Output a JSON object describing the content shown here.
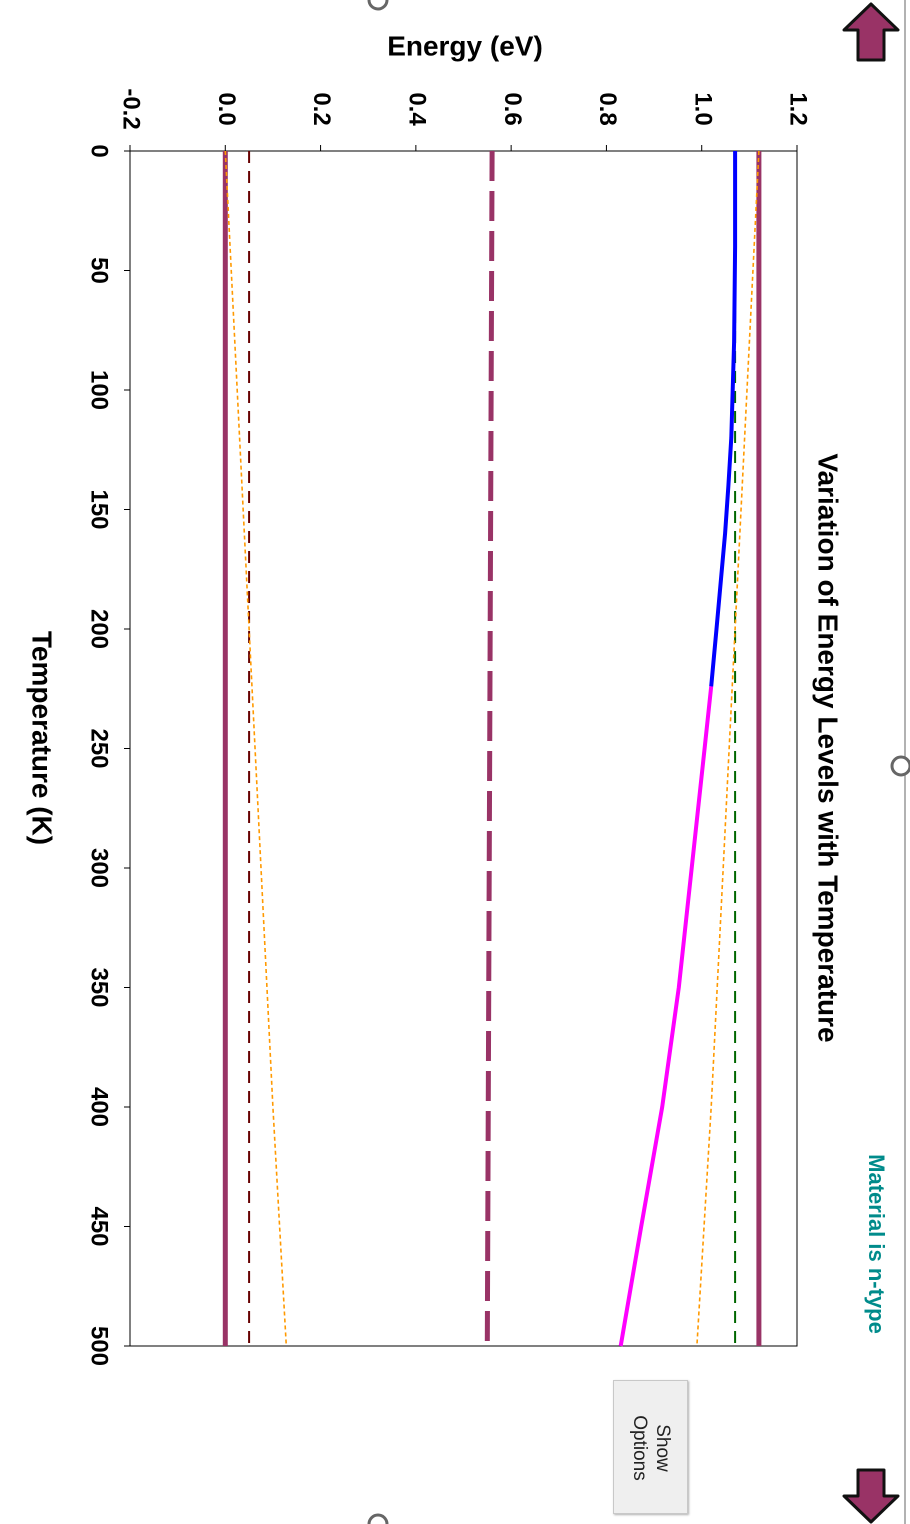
{
  "chart_data": {
    "type": "line",
    "title": "Variation of Energy Levels with Temperature",
    "xlabel": "Temperature (K)",
    "ylabel": "Energy (eV)",
    "xlim": [
      0,
      500
    ],
    "ylim": [
      -0.2,
      1.2
    ],
    "xticks": [
      0,
      50,
      100,
      150,
      200,
      250,
      300,
      350,
      400,
      450,
      500
    ],
    "yticks": [
      -0.2,
      0.0,
      0.2,
      0.4,
      0.6,
      0.8,
      1.0,
      1.2
    ],
    "xtick_labels": [
      "0",
      "50",
      "100",
      "150",
      "200",
      "250",
      "300",
      "350",
      "400",
      "450",
      "500"
    ],
    "ytick_labels": [
      "-0.2",
      "0.0",
      "0.2",
      "0.4",
      "0.6",
      "0.8",
      "1.0",
      "1.2"
    ],
    "grid": false,
    "legend": "none",
    "series": [
      {
        "style": "solid-thick",
        "color": "#993366",
        "points": [
          [
            0,
            1.12
          ],
          [
            500,
            1.12
          ]
        ]
      },
      {
        "style": "solid-thick",
        "color": "#993366",
        "points": [
          [
            0,
            0.0
          ],
          [
            500,
            0.0
          ]
        ]
      },
      {
        "style": "long-dash-thick",
        "color": "#993366",
        "points": [
          [
            0,
            0.56
          ],
          [
            500,
            0.55
          ]
        ]
      },
      {
        "style": "dashed",
        "color": "#660000",
        "points": [
          [
            0,
            0.05
          ],
          [
            500,
            0.05
          ]
        ]
      },
      {
        "style": "dashed",
        "color": "#006600",
        "points": [
          [
            0,
            1.07
          ],
          [
            500,
            1.07
          ]
        ]
      },
      {
        "style": "dotted",
        "color": "#ff9900",
        "points": [
          [
            0,
            0.0
          ],
          [
            100,
            0.025
          ],
          [
            200,
            0.05
          ],
          [
            300,
            0.075
          ],
          [
            400,
            0.1
          ],
          [
            500,
            0.128
          ]
        ]
      },
      {
        "style": "dotted",
        "color": "#ff9900",
        "points": [
          [
            0,
            1.12
          ],
          [
            100,
            1.095
          ],
          [
            200,
            1.07
          ],
          [
            300,
            1.045
          ],
          [
            400,
            1.02
          ],
          [
            500,
            0.99
          ]
        ]
      },
      {
        "style": "solid",
        "color": "#0000ff",
        "points": [
          [
            0,
            1.07
          ],
          [
            40,
            1.07
          ],
          [
            80,
            1.068
          ],
          [
            100,
            1.065
          ],
          [
            120,
            1.062
          ],
          [
            140,
            1.056
          ],
          [
            160,
            1.049
          ],
          [
            180,
            1.04
          ],
          [
            200,
            1.031
          ],
          [
            224,
            1.02
          ]
        ]
      },
      {
        "style": "solid",
        "color": "#ff00ff",
        "points": [
          [
            224,
            1.02
          ],
          [
            250,
            1.006
          ],
          [
            300,
            0.979
          ],
          [
            350,
            0.952
          ],
          [
            400,
            0.917
          ],
          [
            450,
            0.873
          ],
          [
            500,
            0.83
          ]
        ]
      }
    ]
  },
  "material_status": "Material is n-type",
  "colors": {
    "status": "#008b8b",
    "arrow_fill": "#993366"
  },
  "controls": {
    "show_options_line1": "Show",
    "show_options_line2": "Options",
    "up_arrow_icon": "up-arrow-icon",
    "down_arrow_icon": "down-arrow-icon",
    "resize_handle_icon": "resize-handle-icon"
  }
}
